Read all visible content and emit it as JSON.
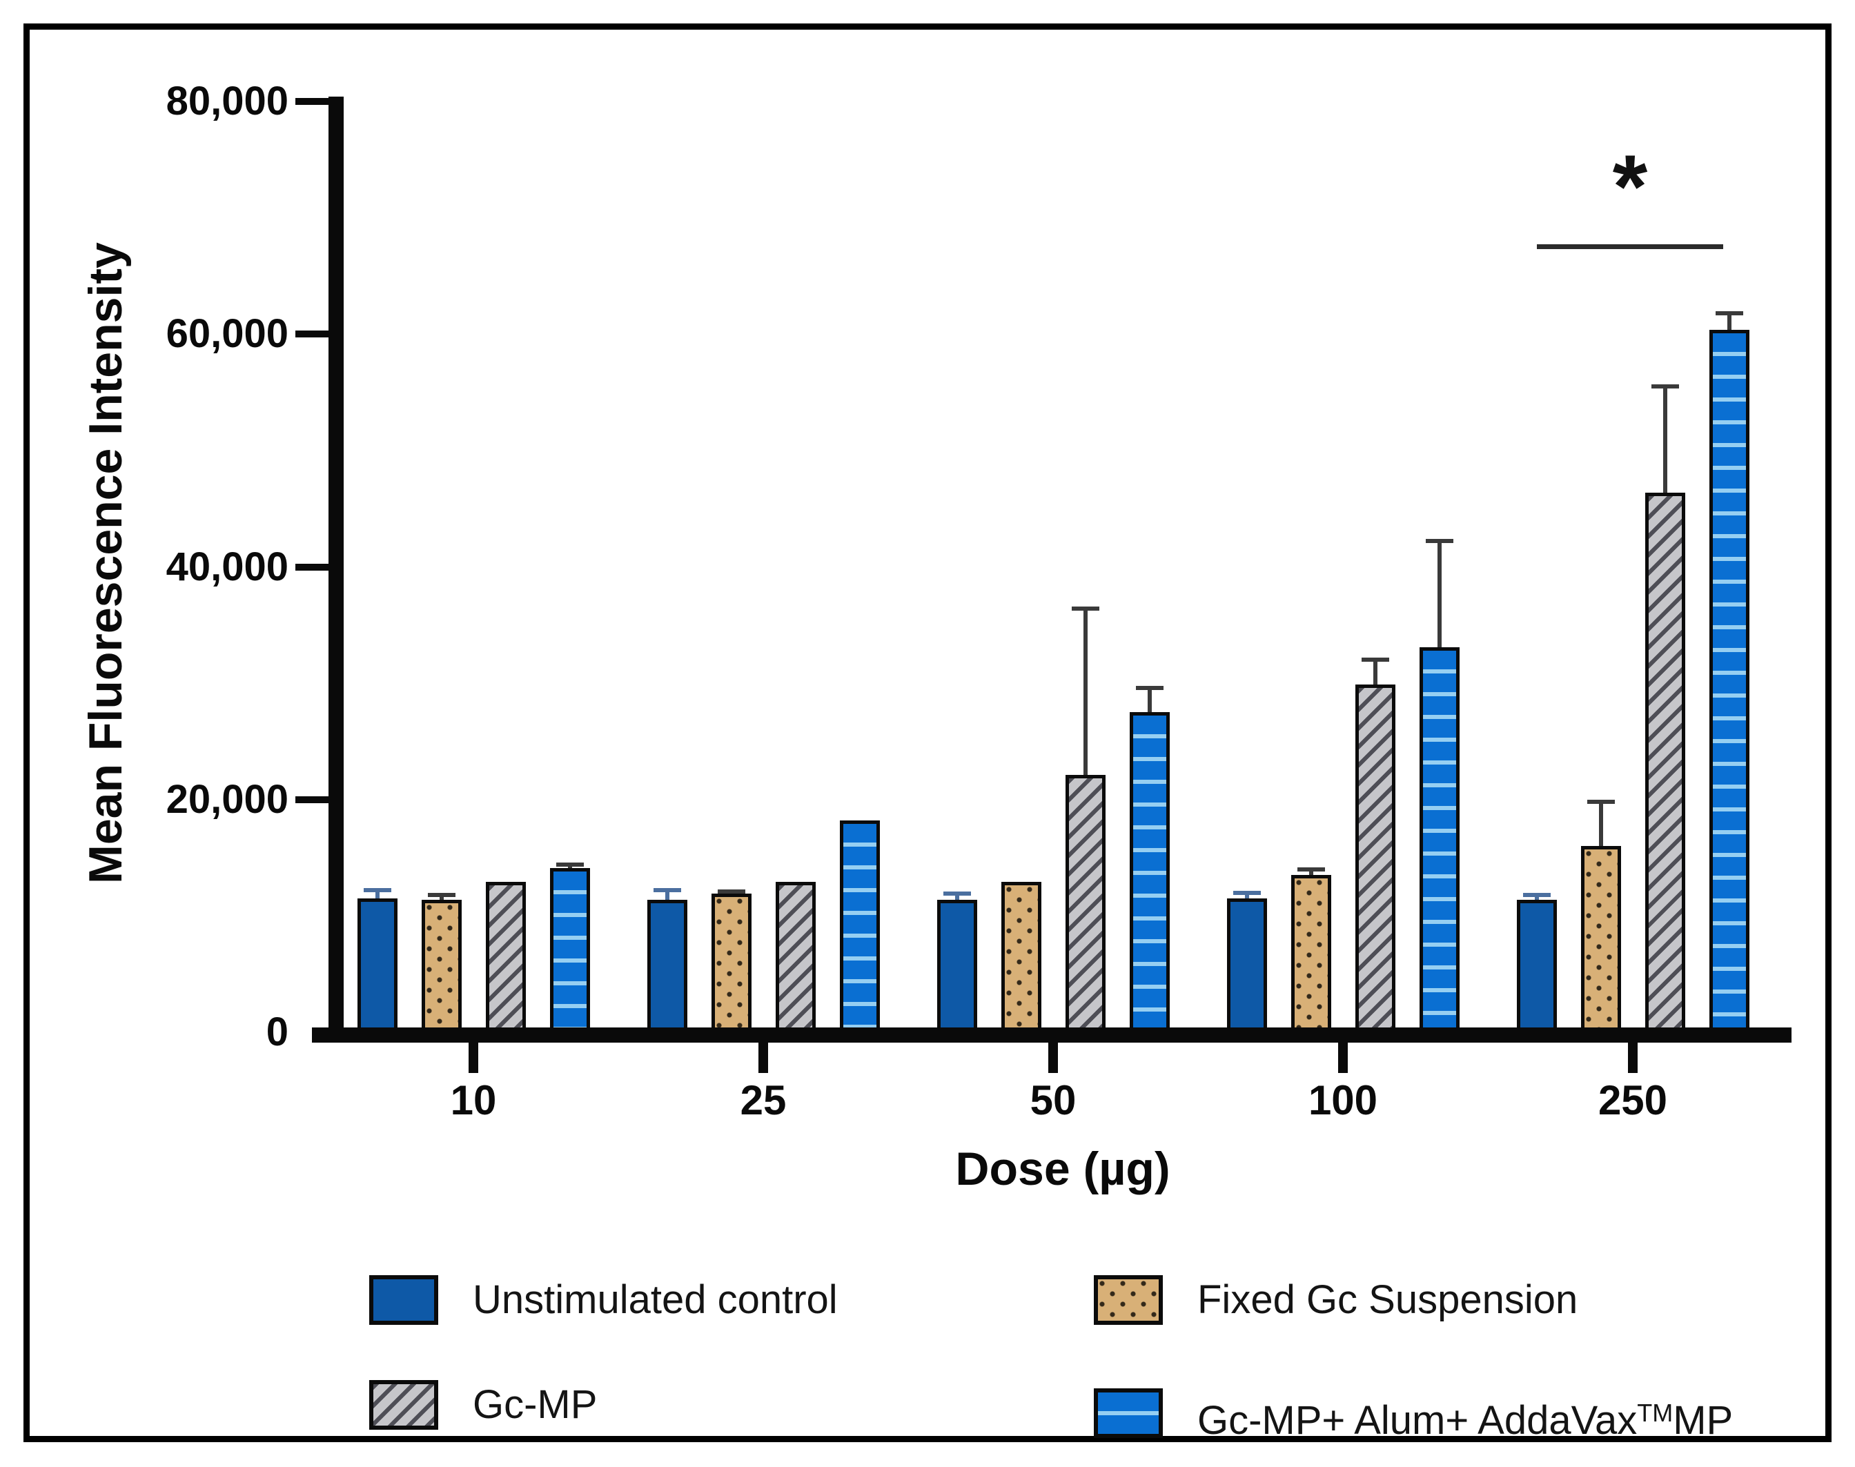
{
  "figure": {
    "background": "#ffffff",
    "frame_color": "#000000"
  },
  "chart_data": {
    "type": "bar",
    "title": "",
    "xlabel": "Dose (µg)",
    "ylabel": "Mean Fluorescence Intensity",
    "ylim": [
      0,
      80000
    ],
    "yticks": [
      0,
      20000,
      40000,
      60000,
      80000
    ],
    "ytick_labels": [
      "0",
      "20,000",
      "40,000",
      "60,000",
      "80,000"
    ],
    "categories": [
      "10",
      "25",
      "50",
      "100",
      "250"
    ],
    "grid": false,
    "legend_position": "bottom",
    "series": [
      {
        "name": "Unstimulated control",
        "swatch": "solid-blue",
        "color": "#0e59a7",
        "error_color": "#4b6f9f",
        "values": [
          11500,
          11400,
          11400,
          11500,
          11400
        ],
        "errors_plus": [
          700,
          800,
          500,
          500,
          400
        ]
      },
      {
        "name": "Fixed Gc Suspension",
        "swatch": "tan-dots",
        "color": "#d8b077",
        "error_color": "#3a3a3a",
        "values": [
          11400,
          11900,
          12900,
          13500,
          16000
        ],
        "errors_plus": [
          400,
          200,
          0,
          500,
          3800
        ]
      },
      {
        "name": "Gc-MP",
        "swatch": "gray-diagonal-stripes",
        "color": "#c6c6ca",
        "error_color": "#3a3a3a",
        "values": [
          12900,
          12900,
          22100,
          29900,
          46400
        ],
        "errors_plus": [
          0,
          0,
          14300,
          2100,
          9100
        ]
      },
      {
        "name": "Gc-MP+ Alum+ AddaVax™MP",
        "swatch": "blue-horizontal-stripes",
        "color": "#0a6fd2",
        "error_color": "#3a3a3a",
        "values": [
          14100,
          18200,
          27500,
          33100,
          60400
        ],
        "errors_plus": [
          300,
          0,
          2100,
          9100,
          1400
        ]
      }
    ],
    "significance": {
      "symbol": "*",
      "dose": "250"
    }
  },
  "legend": {
    "items": [
      {
        "pre": "Unstimulated control",
        "sup": "",
        "post": "",
        "swatch": "solid-blue"
      },
      {
        "pre": "Fixed Gc Suspension",
        "sup": "",
        "post": "",
        "swatch": "tan-dots"
      },
      {
        "pre": "Gc-MP",
        "sup": "",
        "post": "",
        "swatch": "gray-diagonal-stripes"
      },
      {
        "pre": "Gc-MP+ Alum+ AddaVax",
        "sup": "TM",
        "post": "MP",
        "swatch": "blue-horizontal-stripes"
      }
    ]
  }
}
